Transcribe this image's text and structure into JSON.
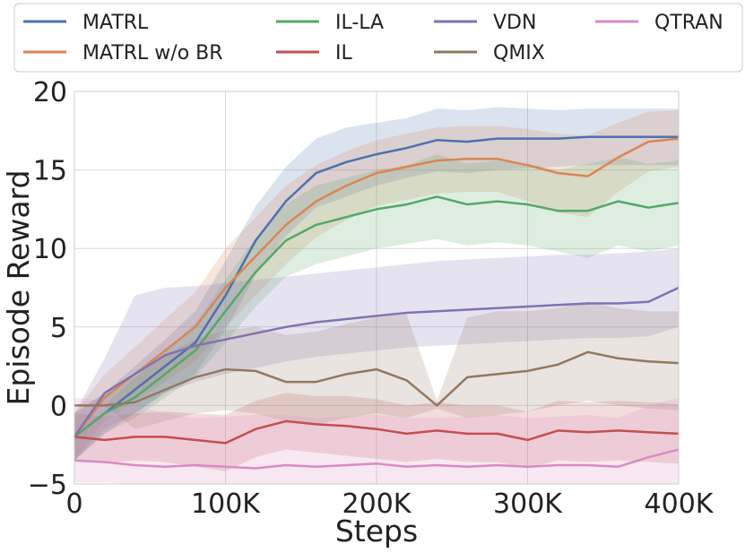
{
  "chart_data": {
    "type": "line",
    "title": "",
    "xlabel": "Steps",
    "ylabel": "Episode Reward",
    "xlim": [
      0,
      400000
    ],
    "ylim": [
      -5,
      20
    ],
    "grid": true,
    "legend_position": "top",
    "xticks": [
      {
        "value": 0,
        "label": "0"
      },
      {
        "value": 100000,
        "label": "100K"
      },
      {
        "value": 200000,
        "label": "200K"
      },
      {
        "value": 300000,
        "label": "300K"
      },
      {
        "value": 400000,
        "label": "400K"
      }
    ],
    "yticks": [
      {
        "value": -5,
        "label": "−5"
      },
      {
        "value": 0,
        "label": "0"
      },
      {
        "value": 5,
        "label": "5"
      },
      {
        "value": 10,
        "label": "10"
      },
      {
        "value": 15,
        "label": "15"
      },
      {
        "value": 20,
        "label": "20"
      }
    ],
    "x": [
      0,
      20000,
      40000,
      60000,
      80000,
      100000,
      120000,
      140000,
      160000,
      180000,
      200000,
      220000,
      240000,
      260000,
      280000,
      300000,
      320000,
      340000,
      360000,
      380000,
      400000
    ],
    "series": [
      {
        "name": "MATRL",
        "color": "#4c72b0",
        "values": [
          -2.0,
          -0.5,
          1.0,
          2.5,
          4.0,
          7.0,
          10.5,
          13.0,
          14.8,
          15.5,
          16.0,
          16.4,
          16.9,
          16.8,
          17.0,
          17.0,
          17.0,
          17.1,
          17.1,
          17.1,
          17.1
        ],
        "lower": [
          -3.5,
          -1.8,
          -0.5,
          0.8,
          2.0,
          4.8,
          8.3,
          10.8,
          12.6,
          13.3,
          14.0,
          14.5,
          14.9,
          14.8,
          15.0,
          15.1,
          15.2,
          15.3,
          15.3,
          15.3,
          15.3
        ],
        "upper": [
          -0.5,
          0.8,
          2.5,
          4.2,
          6.0,
          9.2,
          12.7,
          15.2,
          17.0,
          17.7,
          18.0,
          18.3,
          18.9,
          18.8,
          19.0,
          18.9,
          18.8,
          18.9,
          18.9,
          18.9,
          18.9
        ]
      },
      {
        "name": "MATRL w/o BR",
        "color": "#dd8452",
        "values": [
          -2.0,
          0.5,
          2.0,
          3.5,
          5.0,
          7.5,
          9.5,
          11.5,
          13.0,
          14.0,
          14.8,
          15.2,
          15.6,
          15.7,
          15.7,
          15.3,
          14.8,
          14.6,
          15.8,
          16.8,
          17.0
        ],
        "lower": [
          -3.5,
          -1.0,
          0.3,
          1.5,
          2.8,
          5.0,
          7.0,
          9.0,
          10.7,
          11.8,
          12.7,
          13.1,
          13.5,
          13.6,
          13.6,
          13.0,
          12.3,
          12.0,
          13.6,
          14.9,
          15.2
        ],
        "upper": [
          -0.5,
          2.0,
          3.7,
          5.5,
          7.2,
          10.0,
          12.0,
          14.0,
          15.3,
          16.2,
          16.9,
          17.3,
          17.7,
          17.8,
          17.8,
          17.6,
          17.3,
          17.2,
          18.0,
          18.7,
          18.8
        ]
      },
      {
        "name": "IL-LA",
        "color": "#55a868",
        "values": [
          -2.0,
          -0.5,
          0.5,
          2.0,
          3.5,
          6.0,
          8.5,
          10.5,
          11.5,
          12.0,
          12.5,
          12.8,
          13.3,
          12.8,
          13.0,
          12.8,
          12.4,
          12.4,
          13.0,
          12.6,
          12.9
        ],
        "lower": [
          -3.5,
          -1.8,
          -0.8,
          0.5,
          1.8,
          4.0,
          6.3,
          8.2,
          9.0,
          9.5,
          10.0,
          10.3,
          10.6,
          10.2,
          10.4,
          10.2,
          9.8,
          9.4,
          10.2,
          9.8,
          10.2
        ],
        "upper": [
          -0.5,
          0.8,
          1.8,
          3.5,
          5.2,
          8.0,
          10.7,
          12.8,
          14.0,
          14.5,
          15.0,
          15.3,
          16.0,
          15.4,
          15.6,
          15.4,
          15.0,
          15.4,
          15.8,
          15.4,
          15.6
        ]
      },
      {
        "name": "IL",
        "color": "#c44e52",
        "values": [
          -2.0,
          -2.2,
          -2.0,
          -2.0,
          -2.2,
          -2.4,
          -1.5,
          -1.0,
          -1.2,
          -1.3,
          -1.5,
          -1.8,
          -1.6,
          -1.8,
          -1.8,
          -2.2,
          -1.6,
          -1.7,
          -1.6,
          -1.7,
          -1.8
        ],
        "lower": [
          -3.5,
          -3.7,
          -3.5,
          -3.6,
          -3.9,
          -4.2,
          -3.3,
          -2.8,
          -3.0,
          -3.2,
          -3.4,
          -3.6,
          -3.4,
          -3.6,
          -3.6,
          -4.0,
          -3.5,
          -3.6,
          -3.5,
          -3.6,
          -3.7
        ],
        "upper": [
          -0.5,
          -0.7,
          -0.5,
          -0.4,
          -0.5,
          -0.6,
          0.3,
          0.8,
          0.6,
          0.6,
          0.4,
          0.0,
          0.2,
          0.0,
          0.0,
          -0.4,
          0.3,
          0.2,
          0.3,
          0.2,
          0.1
        ]
      },
      {
        "name": "VDN",
        "color": "#8172b3",
        "values": [
          -2.0,
          0.8,
          2.0,
          3.2,
          3.8,
          4.2,
          4.6,
          5.0,
          5.3,
          5.5,
          5.7,
          5.9,
          6.0,
          6.1,
          6.2,
          6.3,
          6.4,
          6.5,
          6.5,
          6.6,
          7.5
        ],
        "lower": [
          -3.5,
          -1.5,
          -0.5,
          0.8,
          1.5,
          2.0,
          2.4,
          2.8,
          3.1,
          3.3,
          3.5,
          3.7,
          3.8,
          3.9,
          4.0,
          4.1,
          4.2,
          4.3,
          4.3,
          4.4,
          5.0
        ],
        "upper": [
          -0.5,
          3.0,
          7.0,
          7.5,
          7.6,
          7.8,
          8.0,
          8.2,
          8.4,
          8.6,
          8.8,
          9.0,
          9.2,
          9.3,
          9.4,
          9.5,
          9.6,
          9.6,
          9.7,
          9.8,
          10.0
        ]
      },
      {
        "name": "QMIX",
        "color": "#937860",
        "values": [
          0.0,
          0.0,
          0.2,
          1.0,
          1.8,
          2.3,
          2.2,
          1.5,
          1.5,
          2.0,
          2.3,
          1.6,
          0.0,
          1.8,
          2.0,
          2.2,
          2.6,
          3.4,
          3.0,
          2.8,
          2.7
        ],
        "lower": [
          0.0,
          0.0,
          -1.5,
          -1.0,
          -0.5,
          -0.3,
          -0.5,
          -1.0,
          -1.2,
          -0.8,
          -0.5,
          -0.8,
          -0.2,
          -0.8,
          -0.6,
          -0.4,
          0.0,
          0.3,
          0.0,
          -0.2,
          -0.3
        ],
        "upper": [
          0.0,
          0.0,
          1.8,
          3.2,
          4.2,
          4.8,
          5.0,
          4.5,
          4.7,
          5.2,
          5.6,
          5.8,
          0.3,
          5.6,
          6.0,
          6.0,
          6.2,
          6.6,
          6.2,
          6.0,
          6.0
        ]
      },
      {
        "name": "QTRAN",
        "color": "#da8bc3",
        "values": [
          -3.5,
          -3.6,
          -3.8,
          -3.9,
          -3.8,
          -3.9,
          -4.0,
          -3.8,
          -3.9,
          -3.8,
          -3.7,
          -3.9,
          -3.8,
          -3.9,
          -3.8,
          -3.9,
          -3.8,
          -3.8,
          -3.9,
          -3.3,
          -2.8
        ],
        "lower": [
          -4.9,
          -4.9,
          -5.0,
          -5.0,
          -5.0,
          -5.0,
          -5.0,
          -5.0,
          -5.0,
          -5.0,
          -5.0,
          -5.0,
          -5.0,
          -5.0,
          -5.0,
          -5.0,
          -5.0,
          -5.0,
          -5.0,
          -5.0,
          -5.0
        ],
        "upper": [
          0.5,
          0.3,
          0.0,
          -0.5,
          -0.8,
          -0.7,
          -0.6,
          -0.6,
          -0.8,
          -0.7,
          -0.6,
          -0.8,
          -0.8,
          -0.7,
          -0.6,
          -0.8,
          -0.7,
          -0.6,
          -0.8,
          0.0,
          0.5
        ]
      }
    ]
  }
}
